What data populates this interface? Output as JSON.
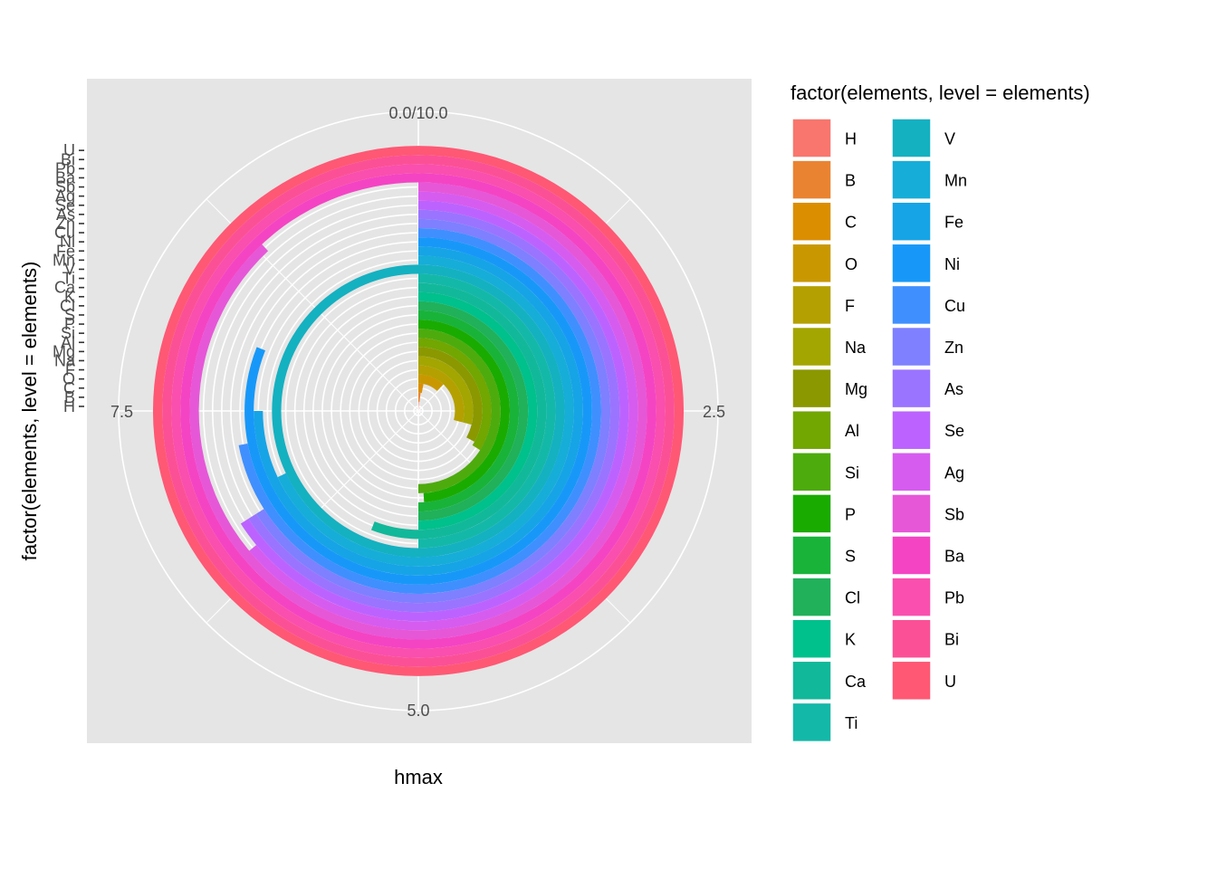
{
  "chart_data": {
    "type": "bar",
    "coord": "polar",
    "categories": [
      "H",
      "B",
      "C",
      "O",
      "F",
      "Na",
      "Mg",
      "Al",
      "Si",
      "P",
      "S",
      "Cl",
      "K",
      "Ca",
      "Ti",
      "V",
      "Mn",
      "Fe",
      "Ni",
      "Cu",
      "Zn",
      "As",
      "Se",
      "Ag",
      "Sb",
      "Ba",
      "Pb",
      "Bi",
      "U"
    ],
    "values": [
      0.1,
      0.2,
      0.3,
      1.2,
      2.9,
      2.9,
      3.3,
      3.4,
      5.0,
      4.9,
      5.0,
      5.0,
      5.0,
      5.6,
      5.0,
      10.0,
      6.8,
      7.5,
      8.1,
      7.2,
      6.6,
      6.6,
      6.6,
      6.4,
      8.8,
      10.0,
      10.0,
      10.0,
      10.0
    ],
    "colors": [
      "#F8766D",
      "#EA8331",
      "#DB8E00",
      "#C99800",
      "#B4A000",
      "#A3A500",
      "#8B9800",
      "#72A600",
      "#4EAB0E",
      "#1AAB00",
      "#19B33A",
      "#20B15A",
      "#00C08B",
      "#12B89A",
      "#14B8A8",
      "#14B1C1",
      "#16ADD8",
      "#16A4E6",
      "#1798F9",
      "#408FFF",
      "#7E80FF",
      "#9A74FF",
      "#BC63FF",
      "#D65CF0",
      "#E657D8",
      "#F444C4",
      "#FA4FAE",
      "#FC5096",
      "#FF5874"
    ],
    "xlabel": "hmax",
    "ylabel": "factor(elements, level = elements)",
    "theta_ticks": [
      "0.0/10.0",
      "2.5",
      "5.0",
      "7.5"
    ],
    "theta_range": [
      0,
      10
    ],
    "legend": {
      "title": "factor(elements, level = elements)",
      "position": "right",
      "columns": 2
    },
    "background": "#E5E5E5",
    "grid": true
  }
}
